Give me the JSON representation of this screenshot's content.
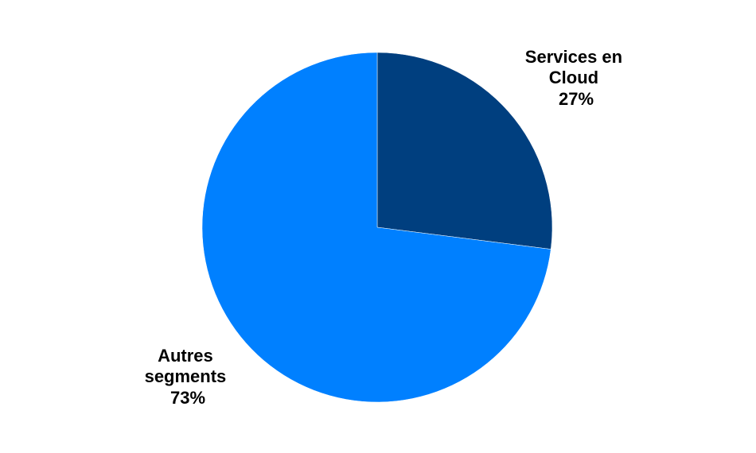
{
  "chart_data": {
    "type": "pie",
    "title": "",
    "slices": [
      {
        "label_lines": [
          "Services en",
          "Cloud"
        ],
        "value": 27,
        "value_text": "27%",
        "color": "#003f7f"
      },
      {
        "label_lines": [
          "Autres",
          "segments"
        ],
        "value": 73,
        "value_text": "73%",
        "color": "#0080ff"
      }
    ],
    "start_angle_deg": 0,
    "direction": "clockwise",
    "legend": "none"
  }
}
